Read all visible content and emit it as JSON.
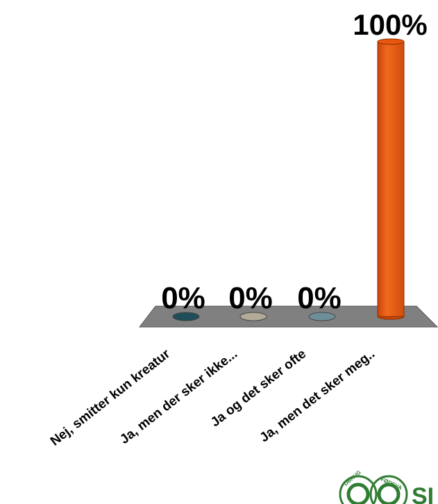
{
  "chart_data": {
    "type": "bar",
    "categories": [
      "Nej, smitter kun kreatur",
      "Ja, men der sker ikke...",
      "Ja og det sker ofte",
      "Ja, men det sker meg.."
    ],
    "values": [
      0,
      0,
      0,
      100
    ],
    "value_labels": [
      "0%",
      "0%",
      "0%",
      "100%"
    ],
    "ylim": [
      0,
      100
    ],
    "colors": [
      "#1f4e5a",
      "#b0aa96",
      "#6e8f98",
      "#e8560f"
    ],
    "floor_color": "#808080",
    "grid": false,
    "legend": "none"
  },
  "logo": {
    "letters": "SI",
    "ring_text_left": "DBRUG",
    "ring_text_right": "FØDEVA",
    "color": "#2e7d32"
  }
}
